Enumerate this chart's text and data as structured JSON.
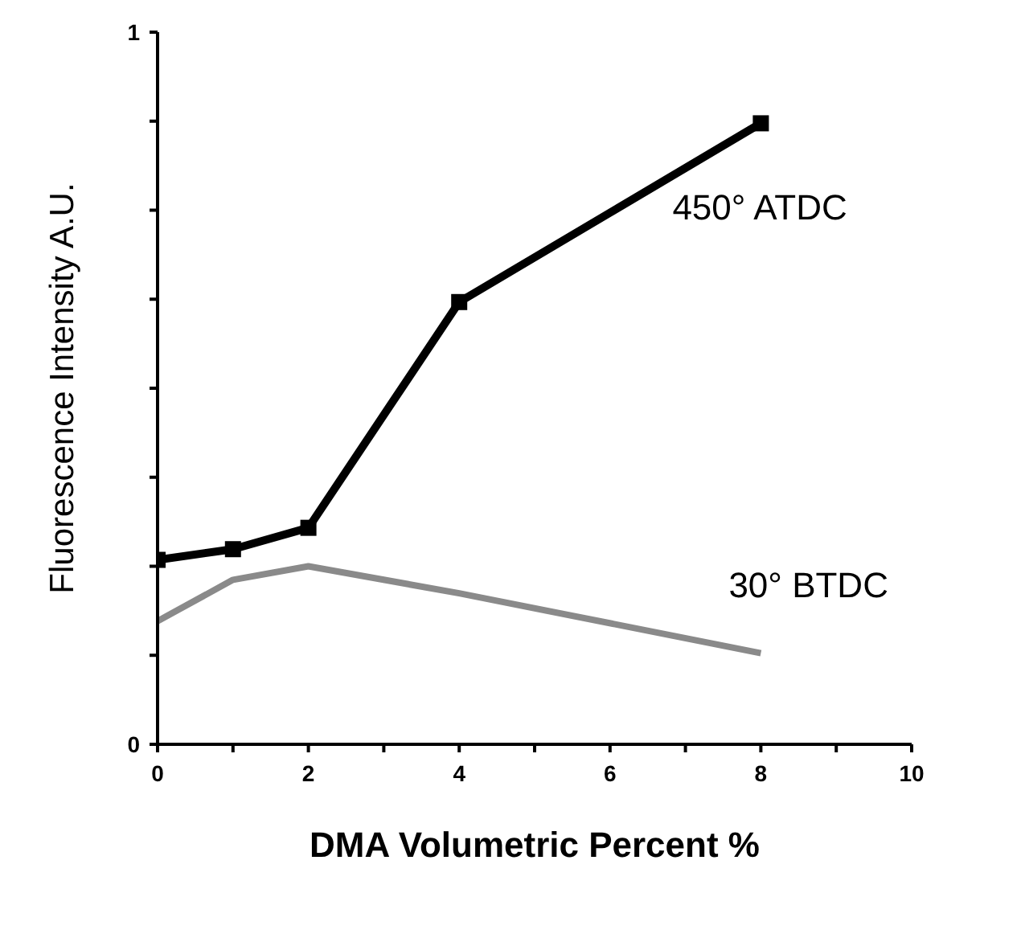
{
  "chart_data": {
    "type": "line",
    "xlabel": "DMA Volumetric Percent  %",
    "ylabel": "Fluorescence Intensity  A.U.",
    "x": [
      0,
      1,
      2,
      4,
      8
    ],
    "series": [
      {
        "name": "450° ATDC",
        "color": "#000000",
        "marker": "square",
        "values": [
          0.259,
          0.274,
          0.304,
          0.621,
          0.872
        ]
      },
      {
        "name": "30° BTDC",
        "color": "#8a8a8a",
        "marker": "none",
        "values": [
          0.173,
          0.231,
          0.25,
          0.212,
          0.128
        ]
      }
    ],
    "xlim": [
      0,
      10
    ],
    "xticks": [
      0,
      {
        "value": 1,
        "label": null
      },
      2,
      {
        "value": 3,
        "label": null
      },
      4,
      {
        "value": 5,
        "label": null
      },
      6,
      {
        "value": 7,
        "label": null
      },
      8,
      {
        "value": 9,
        "label": null
      },
      10
    ],
    "ylim": [
      0,
      1
    ],
    "yticks": [
      0,
      {
        "value": 0.125,
        "label": null
      },
      {
        "value": 0.25,
        "label": null
      },
      {
        "value": 0.375,
        "label": null
      },
      {
        "value": 0.5,
        "label": null
      },
      {
        "value": 0.625,
        "label": null
      },
      {
        "value": 0.75,
        "label": null
      },
      {
        "value": 0.875,
        "label": null
      },
      1
    ],
    "grid": false,
    "legend": false,
    "line_style": "solid"
  }
}
